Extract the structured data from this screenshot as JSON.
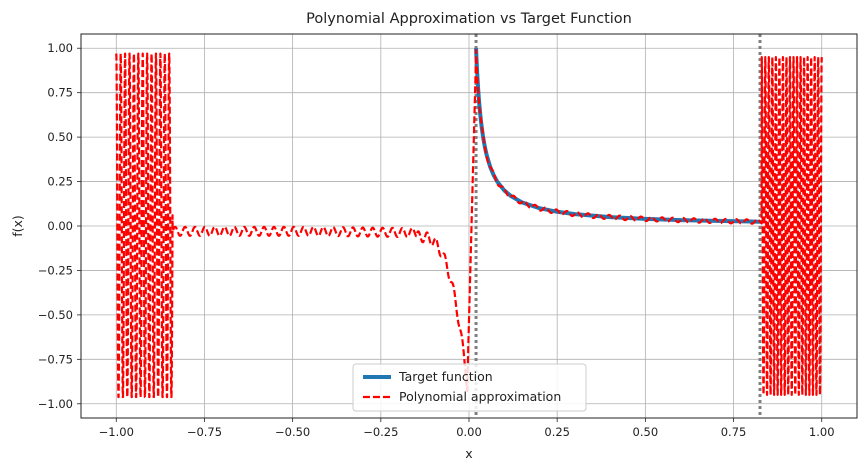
{
  "chart_data": {
    "type": "line",
    "title": "Polynomial Approximation vs Target Function",
    "xlabel": "x",
    "ylabel": "f(x)",
    "xlim": [
      -1.1,
      1.1
    ],
    "ylim": [
      -1.08,
      1.08
    ],
    "x_ticks": [
      -1.0,
      -0.75,
      -0.5,
      -0.25,
      0.0,
      0.25,
      0.5,
      0.75,
      1.0
    ],
    "x_tick_labels": [
      "−1.00",
      "−0.75",
      "−0.50",
      "−0.25",
      "0.00",
      "0.25",
      "0.50",
      "0.75",
      "1.00"
    ],
    "y_ticks": [
      1.0,
      0.75,
      0.5,
      0.25,
      0.0,
      -0.25,
      -0.5,
      -0.75,
      -1.0
    ],
    "y_tick_labels": [
      "1.00",
      "0.75",
      "0.50",
      "0.25",
      "0.00",
      "−0.25",
      "−0.50",
      "−0.75",
      "−1.00"
    ],
    "grid": true,
    "legend_position": "lower-center",
    "vlines": [
      {
        "x": 0.02,
        "style": "dotted",
        "color": "#808080"
      },
      {
        "x": 0.825,
        "style": "dotted",
        "color": "#808080"
      }
    ],
    "series": [
      {
        "name": "Target function",
        "color": "#1f77b4",
        "style": "solid",
        "description": "f(x) = 0.02/x on [0.02, 0.825]",
        "x": [
          0.02,
          0.021,
          0.022,
          0.024,
          0.026,
          0.028,
          0.03,
          0.033,
          0.036,
          0.04,
          0.045,
          0.05,
          0.06,
          0.07,
          0.08,
          0.1,
          0.12,
          0.15,
          0.2,
          0.25,
          0.3,
          0.4,
          0.5,
          0.6,
          0.7,
          0.8,
          0.825
        ],
        "y": [
          1.0,
          0.952,
          0.909,
          0.833,
          0.769,
          0.714,
          0.667,
          0.606,
          0.556,
          0.5,
          0.444,
          0.4,
          0.333,
          0.286,
          0.25,
          0.2,
          0.167,
          0.133,
          0.1,
          0.08,
          0.067,
          0.05,
          0.04,
          0.033,
          0.029,
          0.025,
          0.024
        ]
      },
      {
        "name": "Polynomial approximation",
        "color": "#ff0000",
        "style": "dashed",
        "description": "High-degree polynomial fit: wild oscillation between about -0.97 and 0.97 on [-1.0, -0.84] and [0.83, 1.0], small ripple near 0 on [-0.84, -0.15], steep dip to about -0.9 just below x = 0, then tracks 0.02/x on [0.02, 0.83]"
      }
    ]
  }
}
